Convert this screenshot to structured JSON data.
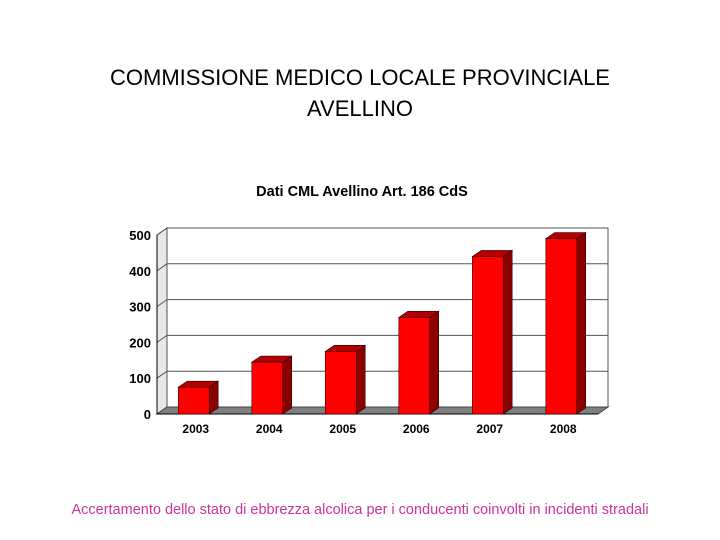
{
  "slide": {
    "title_line1": "COMMISSIONE MEDICO LOCALE PROVINCIALE",
    "title_line2": "AVELLINO",
    "footer": "Accertamento dello stato di ebbrezza alcolica per i conducenti coinvolti in incidenti stradali",
    "footer_color": "#cc3399"
  },
  "chart_data": {
    "type": "bar",
    "title": "Dati CML Avellino Art. 186 CdS",
    "xlabel": "",
    "ylabel": "",
    "categories": [
      "2003",
      "2004",
      "2005",
      "2006",
      "2007",
      "2008"
    ],
    "values": [
      75,
      145,
      175,
      270,
      440,
      490
    ],
    "ylim": [
      0,
      500
    ],
    "yticks": [
      "0",
      "100",
      "200",
      "300",
      "400",
      "500"
    ],
    "grid": true,
    "legend": "none",
    "style": "3d-columns",
    "bar_color": "#ff0000",
    "bar_side_color": "#8b0000",
    "bar_top_color": "#b30000",
    "floor_color": "#808080"
  }
}
